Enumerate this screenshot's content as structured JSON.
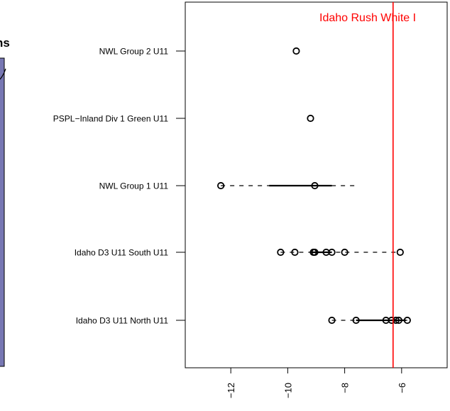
{
  "left_panel": {
    "title_fragment": "ns",
    "fill_color": "#7777b3"
  },
  "chart_data": {
    "type": "scatter",
    "orientation": "horizontal",
    "title": "",
    "xlabel": "",
    "ylabel": "",
    "xlim": [
      -13.6,
      -4.4
    ],
    "x_ticks": [
      -12,
      -10,
      -8,
      -6
    ],
    "x_tick_labels": [
      "−12",
      "−10",
      "−8",
      "−6"
    ],
    "categories": [
      "NWL Group 2 U11",
      "PSPL−Inland Div 1 Green U11",
      "NWL Group 1 U11",
      "Idaho D3 U11 South U11",
      "Idaho D3 U11 North U11"
    ],
    "series": [
      {
        "category": "NWL Group 2 U11",
        "points": [
          -9.7
        ],
        "whisker": null,
        "box": null
      },
      {
        "category": "PSPL−Inland Div 1 Green U11",
        "points": [
          -9.2
        ],
        "whisker": null,
        "box": null
      },
      {
        "category": "NWL Group 1 U11",
        "points": [
          -12.35,
          -9.05
        ],
        "whisker": [
          -12.35,
          -7.6
        ],
        "box": [
          -10.65,
          -8.45
        ]
      },
      {
        "category": "Idaho D3 U11 South U11",
        "points": [
          -10.25,
          -9.75,
          -9.1,
          -9.05,
          -8.65,
          -8.45,
          -8.0,
          -6.05
        ],
        "whisker": [
          -10.25,
          -6.05
        ],
        "box": [
          -9.15,
          -8.45
        ]
      },
      {
        "category": "Idaho D3 U11 North U11",
        "points": [
          -8.45,
          -7.6,
          -6.55,
          -6.35,
          -6.2,
          -6.1,
          -5.8
        ],
        "whisker": [
          -8.45,
          -5.8
        ],
        "box": [
          -7.6,
          -5.85
        ]
      }
    ],
    "reference_line": {
      "label": "Idaho Rush White I",
      "value": -6.3,
      "color": "#ff0000"
    },
    "grid": false,
    "legend": "none"
  }
}
